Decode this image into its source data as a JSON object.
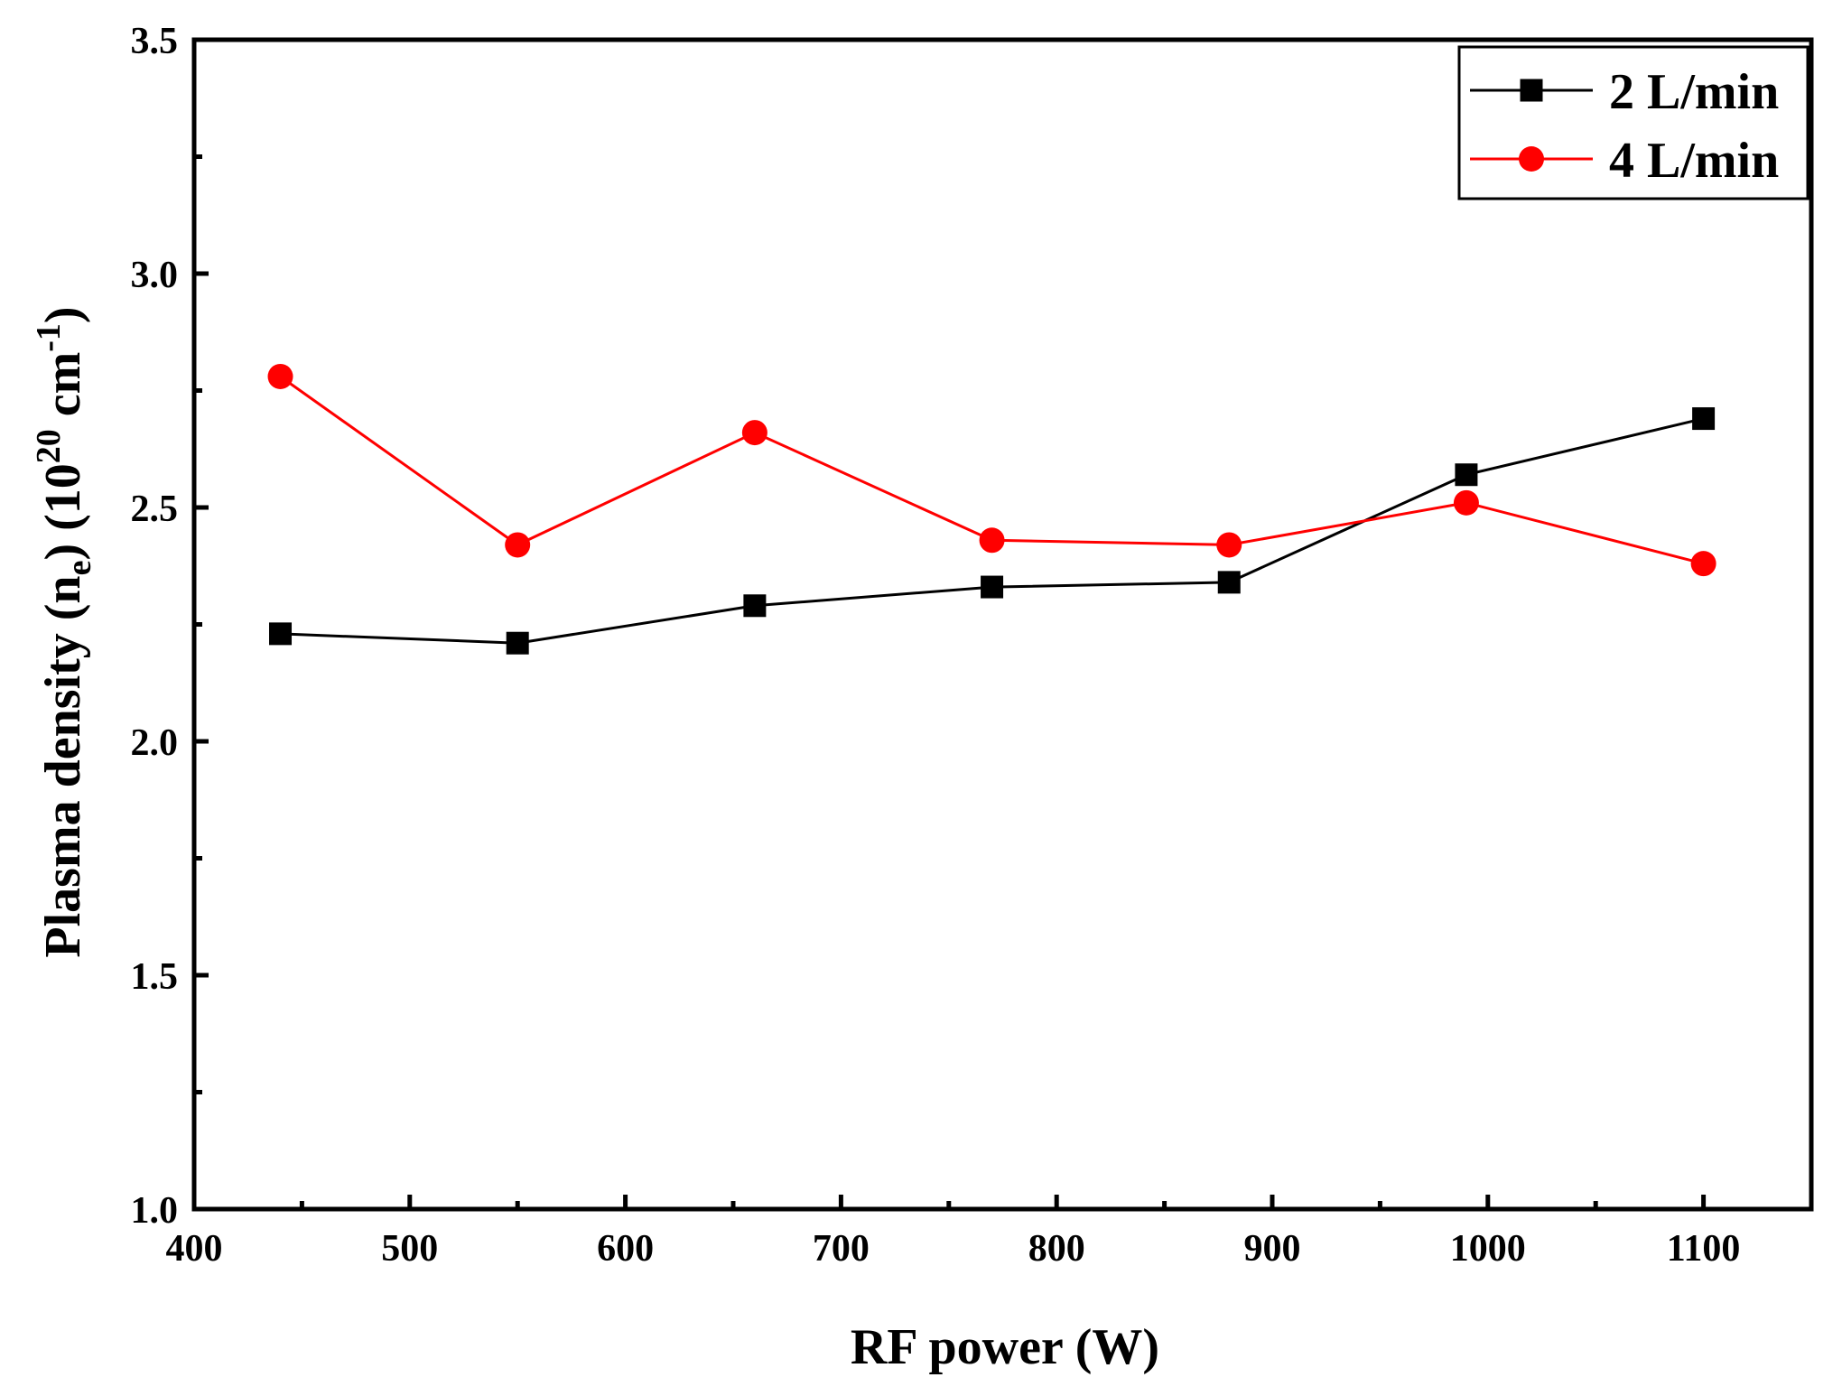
{
  "chart_data": {
    "type": "line",
    "title": "",
    "xlabel": "RF power (W)",
    "ylabel_parts": {
      "main": "Plasma density (n",
      "sub": "e",
      "mid": ") (10",
      "sup1": "20",
      "unit": " cm",
      "sup2": "-1",
      "end": ")"
    },
    "xlim": [
      400,
      1150
    ],
    "ylim": [
      1.0,
      3.5
    ],
    "x_ticks": [
      400,
      500,
      600,
      700,
      800,
      900,
      1000,
      1100
    ],
    "x_tick_labels": [
      "400",
      "500",
      "600",
      "700",
      "800",
      "900",
      "1000",
      "1100"
    ],
    "y_ticks": [
      1.0,
      1.5,
      2.0,
      2.5,
      3.0,
      3.5
    ],
    "y_tick_labels": [
      "1.0",
      "1.5",
      "2.0",
      "2.5",
      "3.0",
      "3.5"
    ],
    "x_minor_step": 50,
    "y_minor_step": 0.25,
    "grid": false,
    "legend_position": "top-right",
    "x": [
      440,
      550,
      660,
      770,
      880,
      990,
      1100
    ],
    "series": [
      {
        "name": "2 L/min",
        "color": "#000000",
        "marker": "square",
        "values": [
          2.23,
          2.21,
          2.29,
          2.33,
          2.34,
          2.57,
          2.69
        ]
      },
      {
        "name": "4 L/min",
        "color": "#ff0000",
        "marker": "circle",
        "values": [
          2.78,
          2.42,
          2.66,
          2.43,
          2.42,
          2.51,
          2.38
        ]
      }
    ]
  }
}
